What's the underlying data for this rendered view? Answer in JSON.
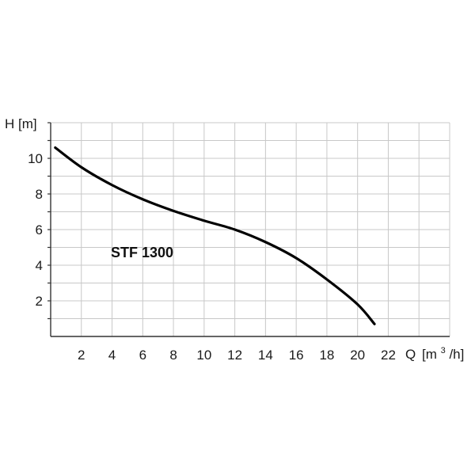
{
  "chart_data": {
    "type": "line",
    "xlabel": "Q",
    "xunit_prefix": "[m",
    "xunit_sup": "3",
    "xunit_suffix": "/h]",
    "ylabel": "H [m]",
    "xlim": [
      0,
      26
    ],
    "ylim": [
      0,
      12
    ],
    "xticks": [
      2,
      4,
      6,
      8,
      10,
      12,
      14,
      16,
      18,
      20,
      22
    ],
    "yticks": [
      2,
      4,
      6,
      8,
      10
    ],
    "grid": true,
    "series": [
      {
        "name": "STF 1300",
        "x": [
          0.3,
          2,
          4,
          6,
          8,
          10,
          12,
          14,
          16,
          18,
          20,
          21.1
        ],
        "y": [
          10.6,
          9.5,
          8.5,
          7.7,
          7.05,
          6.5,
          6.0,
          5.3,
          4.4,
          3.2,
          1.8,
          0.7
        ]
      }
    ],
    "line_color": "#000000",
    "grid_color": "#c8c8c8"
  }
}
